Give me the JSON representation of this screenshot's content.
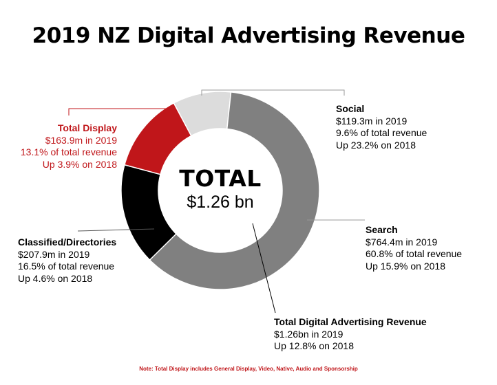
{
  "chart_data": {
    "type": "pie",
    "title": "2019 NZ Digital Advertising Revenue",
    "center": {
      "heading": "TOTAL",
      "value": "$1.26 bn"
    },
    "slices": [
      {
        "name": "Social",
        "value": 119.3,
        "color": "#dcdcdc",
        "label": {
          "head": "Social",
          "line1": "$119.3m in 2019",
          "line2": "9.6% of total revenue",
          "line3": "Up 23.2% on 2018"
        }
      },
      {
        "name": "Search",
        "value": 764.4,
        "color": "#808080",
        "label": {
          "head": "Search",
          "line1": "$764.4m in 2019",
          "line2": "60.8% of total revenue",
          "line3": "Up 15.9% on 2018"
        }
      },
      {
        "name": "Classified/Directories",
        "value": 207.9,
        "color": "#000000",
        "label": {
          "head": "Classified/Directories",
          "line1": "$207.9m in 2019",
          "line2": "16.5% of total revenue",
          "line3": "Up 4.6% on 2018"
        }
      },
      {
        "name": "Total Display",
        "value": 163.9,
        "color": "#c0161a",
        "label": {
          "head": "Total Display",
          "line1": "$163.9m in 2019",
          "line2": "13.1% of total revenue",
          "line3": "Up 3.9% on 2018"
        }
      }
    ],
    "total_label": {
      "head": "Total Digital Advertising Revenue",
      "line1": "$1.26bn in 2019",
      "line2": "Up 12.8% on 2018"
    },
    "note": "Note: Total Display includes General Display, Video, Native, Audio and Sponsorship"
  }
}
